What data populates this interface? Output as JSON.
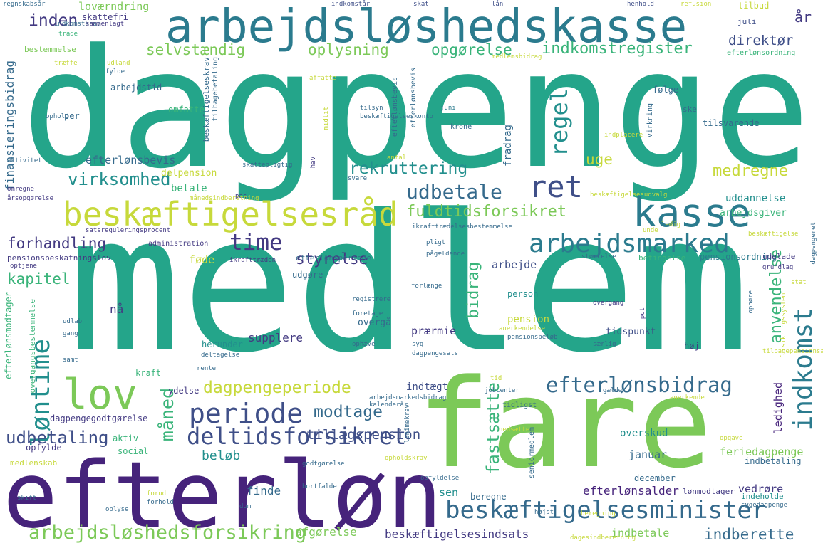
{
  "words": [
    "dagpenge",
    "medlem",
    "fare",
    "efterløn",
    "arbejdsløshedskasse",
    "kasse",
    "beskæftigelsesråd",
    "lov",
    "beskæftigelsesminister",
    "arbejdsløshedsforsikring",
    "arbejdsmarked",
    "indkomst",
    "periode",
    "deltidsforsikret",
    "efterlønsbidrag",
    "løntime",
    "udbetale",
    "ret",
    "time",
    "regel",
    "fuldtidsforsikret",
    "rekruttering",
    "virksomhed",
    "selvstændig",
    "oplysning",
    "opgørelse",
    "indkomstregister",
    "direktør",
    "inden",
    "år",
    "dagpengeperiode",
    "modtage",
    "udbetaling",
    "måned",
    "fastsætte",
    "anvendelse",
    "styrelse",
    "forhandling",
    "kapitel",
    "bidrag",
    "medregne",
    "uge",
    "efterlønsbevis",
    "loværndring",
    "indberette",
    "beskæftigelsesindsats",
    "afgørelse",
    "tillægspension",
    "beløb",
    "finde",
    "sen",
    "efterlønsalder",
    "feriedagpenge",
    "januar",
    "overskud",
    "finansieringsbidrag",
    "uddannelse",
    "betale",
    "delpension",
    "arbejdsgiver",
    "arbejde",
    "føde",
    "prærmie",
    "supplere",
    "pension",
    "indtægt",
    "bestemmelse",
    "skattefri",
    "december",
    "vedrøre",
    "indbetale",
    "indbetaling",
    "ledighed",
    "tidspunkt",
    "person",
    "herunder",
    "nå",
    "overgå",
    "udgøre",
    "efterlønsperiode",
    "pensionsbeskatningslov",
    "dagpengegodtgørelse",
    "opfylde",
    "medlenskab",
    "aktiv",
    "social",
    "indeholde",
    "lønmodtager",
    "beregne",
    "høj",
    "følge",
    "ske",
    "tilsvarende",
    "tilbud",
    "juli",
    "efterlønsordning",
    "pensionsordning",
    "betingelse",
    "udelade",
    "ydelse",
    "kraft",
    "omfatte",
    "fradrag",
    "tilbagebetaling",
    "beskæftigelseskrav",
    "arbejdstid",
    "per",
    "refusion",
    "henhold",
    "lån",
    "skat",
    "indkomstår",
    "regnskabsår",
    "trade",
    "indkomstkrav",
    "sammenlagt",
    "udland",
    "fylde",
    "ophold",
    "aktivitet",
    "omregne",
    "årsopgørelse",
    "satsreguleringsprocent",
    "administration",
    "ikrafttræden",
    "optjene",
    "udlab",
    "gang",
    "samt",
    "efterlønsmodtager",
    "overgangsbestemmelse",
    "efterlønsbevis",
    "beskæftigelseskonto",
    "tilsyn",
    "juni",
    "krone",
    "virkning",
    "indplacere",
    "antal",
    "svare",
    "skattepligtig",
    "hav",
    "pas",
    "beskæftigelsesudvalg",
    "beskæftigelse",
    "ledig",
    "ikrafttrædelsesbestemmelse",
    "pligt",
    "pågældende",
    "unde",
    "størrelse",
    "grundlag",
    "forlænge",
    "registrere",
    "foretage",
    "anerkendelse",
    "pct",
    "overgang",
    "ophøre",
    "forsikringssystem",
    "tilbagepensionsalder",
    "stat",
    "syg",
    "dagpengesats",
    "pensionsbeløb",
    "særlig",
    "deltagelse",
    "rente",
    "ophæve",
    "tid",
    "jobcenter",
    "tidligst",
    "gælde",
    "anerkende",
    "arbejdsmarkedsbidrag",
    "kalenderår",
    "lønimekrav",
    "opgave",
    "seniormedlem",
    "nedsætte",
    "opholdskrav",
    "godtgørelse",
    "opfyldelse",
    "højst",
    "beregning",
    "sygedagpenge",
    "dagesindberetning",
    "skift",
    "forud",
    "forhold",
    "oplyse",
    "bortfalde",
    "dom",
    "dagpengeret",
    "månedsindberetning",
    "affatte",
    "midlit",
    "medlemsbidrag",
    "træffe",
    "fyld"
  ]
}
